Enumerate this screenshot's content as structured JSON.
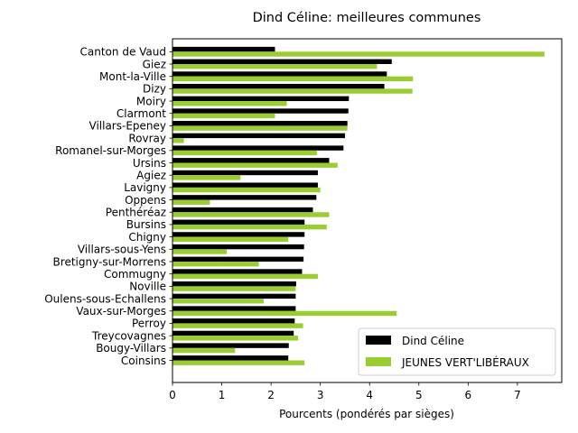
{
  "chart_data": {
    "type": "bar",
    "orientation": "horizontal",
    "title": "Dind Céline: meilleures communes",
    "xlabel": "Pourcents (pondérés par sièges)",
    "ylabel": "",
    "xlim": [
      0,
      7.9
    ],
    "xticks": [
      0,
      1,
      2,
      3,
      4,
      5,
      6,
      7
    ],
    "grid": false,
    "legend_position": "lower-right",
    "categories": [
      "Canton de Vaud",
      "Giez",
      "Mont-la-Ville",
      "Dizy",
      "Moiry",
      "Clarmont",
      "Villars-Epeney",
      "Rovray",
      "Romanel-sur-Morges",
      "Ursins",
      "Agiez",
      "Lavigny",
      "Oppens",
      "Penthéréaz",
      "Bursins",
      "Chigny",
      "Villars-sous-Yens",
      "Bretigny-sur-Morrens",
      "Commugny",
      "Noville",
      "Oulens-sous-Echallens",
      "Vaux-sur-Morges",
      "Perroy",
      "Treycovagnes",
      "Bougy-Villars",
      "Coinsins"
    ],
    "series": [
      {
        "name": "Dind Céline",
        "color": "#000000",
        "values": [
          2.08,
          4.45,
          4.35,
          4.3,
          3.58,
          3.57,
          3.55,
          3.5,
          3.47,
          3.18,
          2.95,
          2.95,
          2.92,
          2.85,
          2.68,
          2.68,
          2.67,
          2.66,
          2.63,
          2.51,
          2.5,
          2.5,
          2.48,
          2.46,
          2.36,
          2.35
        ]
      },
      {
        "name": "JEUNES VERT'LIBÉRAUX",
        "color": "#9acd32",
        "values": [
          7.55,
          4.15,
          4.88,
          4.87,
          2.32,
          2.08,
          3.55,
          0.23,
          2.93,
          3.35,
          1.38,
          3.0,
          0.76,
          3.18,
          3.13,
          2.35,
          1.1,
          1.75,
          2.95,
          2.5,
          1.85,
          4.55,
          2.65,
          2.55,
          1.27,
          2.68
        ]
      }
    ]
  }
}
